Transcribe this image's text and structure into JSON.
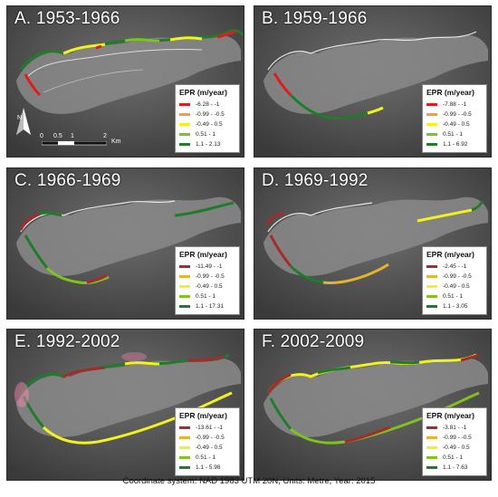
{
  "figure": {
    "footer": "Coordinate system: NAD 1983 UTM 20N, Units: Metre, Year: 2015"
  },
  "panels": [
    {
      "title": "A. 1953-1966",
      "legend": {
        "title": "EPR (m/year)",
        "items": [
          {
            "label": "-6.28 - -1",
            "color": "#e31a1c"
          },
          {
            "label": "-0.99 - -0.5",
            "color": "#ff9b2f"
          },
          {
            "label": "-0.49 - 0.5",
            "color": "#f2f21c"
          },
          {
            "label": "0.51 - 1",
            "color": "#7fc31c"
          },
          {
            "label": "1.1 - 2.13",
            "color": "#1f7d2a"
          }
        ]
      },
      "north_arrow": {
        "letter": "N"
      },
      "scale_bar": {
        "labels": [
          "0",
          "0.5",
          "1",
          "2"
        ],
        "unit": "Km"
      }
    },
    {
      "title": "B. 1959-1966",
      "legend": {
        "title": "EPR (m/year)",
        "items": [
          {
            "label": "-7.88 - -1",
            "color": "#e31a1c"
          },
          {
            "label": "-0.99 - -0.5",
            "color": "#ff9b2f"
          },
          {
            "label": "-0.49 - 0.5",
            "color": "#f2f21c"
          },
          {
            "label": "0.51 - 1",
            "color": "#7fc31c"
          },
          {
            "label": "1.1 - 6.92",
            "color": "#1f7d2a"
          }
        ]
      }
    },
    {
      "title": "C. 1966-1969",
      "legend": {
        "title": "EPR (m/year)",
        "items": [
          {
            "label": "-11.49 - -1",
            "color": "#a52a2a"
          },
          {
            "label": "-0.99 - -0.5",
            "color": "#e6b32e"
          },
          {
            "label": "-0.49 - 0.5",
            "color": "#f2f21c"
          },
          {
            "label": "0.51 - 1",
            "color": "#7fc31c"
          },
          {
            "label": "1.1 - 17.31",
            "color": "#1f7d2a"
          }
        ]
      }
    },
    {
      "title": "D. 1969-1992",
      "legend": {
        "title": "EPR (m/year)",
        "items": [
          {
            "label": "-2.45 - -1",
            "color": "#a52a2a"
          },
          {
            "label": "-0.99 - -0.5",
            "color": "#e6b32e"
          },
          {
            "label": "-0.49 - 0.5",
            "color": "#f2f21c"
          },
          {
            "label": "0.51 - 1",
            "color": "#7fc31c"
          },
          {
            "label": "1.1 - 3.05",
            "color": "#1f7d2a"
          }
        ]
      }
    },
    {
      "title": "E. 1992-2002",
      "legend": {
        "title": "EPR (m/year)",
        "items": [
          {
            "label": "-13.61 - -1",
            "color": "#a52a2a"
          },
          {
            "label": "-0.99 - -0.5",
            "color": "#e6b32e"
          },
          {
            "label": "-0.49 - 0.5",
            "color": "#f2f21c"
          },
          {
            "label": "0.51 - 1",
            "color": "#7fc31c"
          },
          {
            "label": "1.1 - 5.98",
            "color": "#1f7d2a"
          }
        ]
      }
    },
    {
      "title": "F. 2002-2009",
      "legend": {
        "title": "EPR (m/year)",
        "items": [
          {
            "label": "-3.81 - -1",
            "color": "#a52a2a"
          },
          {
            "label": "-0.99 - -0.5",
            "color": "#e6b32e"
          },
          {
            "label": "-0.49 - 0.5",
            "color": "#f2f21c"
          },
          {
            "label": "0.51 - 1",
            "color": "#7fc31c"
          },
          {
            "label": "1.1 - 7.63",
            "color": "#1f7d2a"
          }
        ]
      }
    }
  ]
}
